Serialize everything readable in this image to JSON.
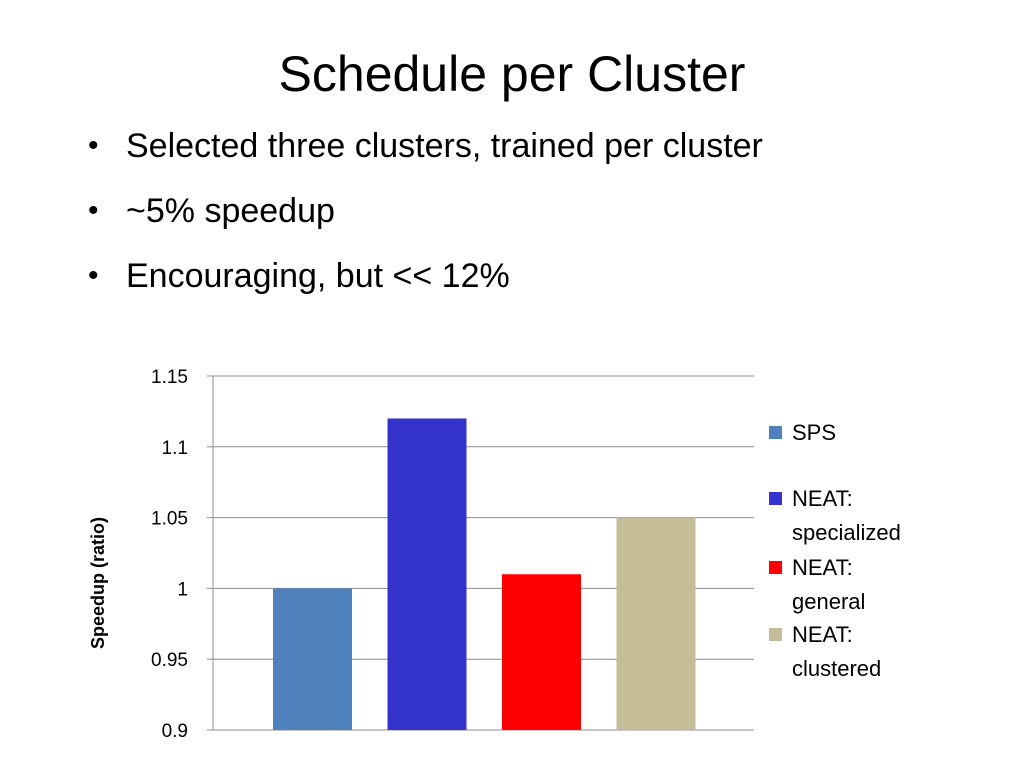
{
  "slide": {
    "title": "Schedule per Cluster",
    "bullets": [
      "Selected three clusters, trained per cluster",
      "~5% speedup",
      "Encouraging, but << 12%"
    ]
  },
  "chart_data": {
    "type": "bar",
    "title": "",
    "xlabel": "",
    "ylabel": "Speedup (ratio)",
    "ylim": [
      0.9,
      1.15
    ],
    "yticks": [
      0.9,
      0.95,
      1,
      1.05,
      1.1,
      1.15
    ],
    "ytick_labels": [
      "0.9",
      "0.95",
      "1",
      "1.05",
      "1.1",
      "1.15"
    ],
    "grid": true,
    "legend_position": "right",
    "series": [
      {
        "name": "SPS",
        "legend_lines": [
          "SPS"
        ],
        "value": 1.0,
        "color": "#4f81bd"
      },
      {
        "name": "NEAT: specialized",
        "legend_lines": [
          "NEAT:",
          "specialized"
        ],
        "value": 1.12,
        "color": "#3333cc"
      },
      {
        "name": "NEAT: general",
        "legend_lines": [
          "NEAT:",
          "general"
        ],
        "value": 1.01,
        "color": "#ff0000"
      },
      {
        "name": "NEAT: clustered",
        "legend_lines": [
          "NEAT:",
          "clustered"
        ],
        "value": 1.05,
        "color": "#c4bd97"
      }
    ]
  }
}
